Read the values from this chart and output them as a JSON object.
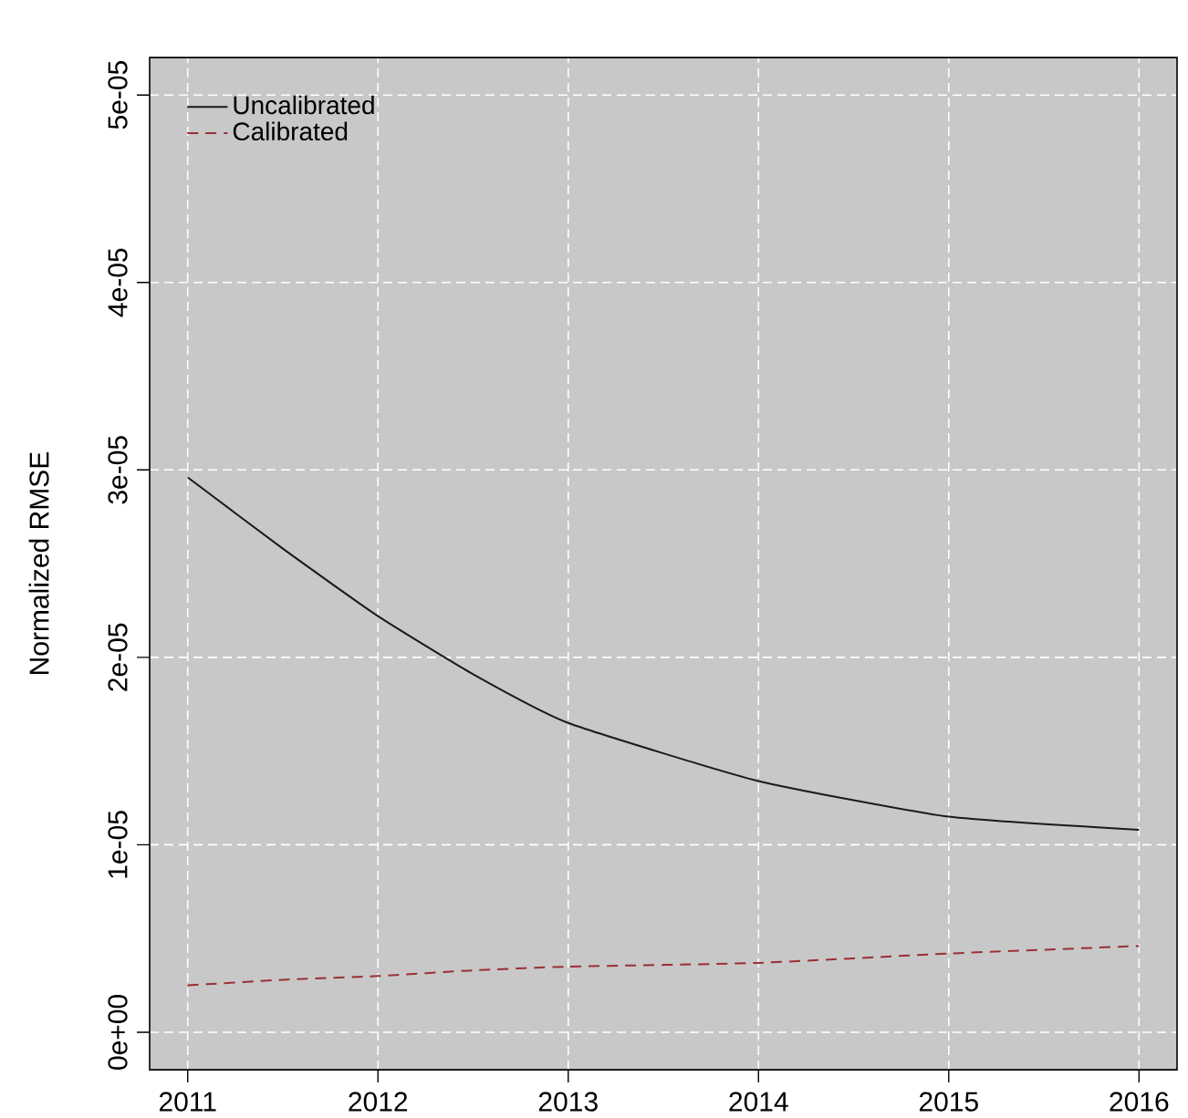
{
  "chart_data": {
    "type": "line",
    "ylabel": "Normalized RMSE",
    "x": [
      2011,
      2011.5,
      2012,
      2012.5,
      2013,
      2014,
      2015,
      2016
    ],
    "series": [
      {
        "name": "Uncalibrated",
        "color": "#1a1a1a",
        "line_style": "solid",
        "values": [
          2.96e-05,
          2.58e-05,
          2.22e-05,
          1.91e-05,
          1.65e-05,
          1.34e-05,
          1.15e-05,
          1.08e-05
        ]
      },
      {
        "name": "Calibrated",
        "color": "#9b2f35",
        "line_style": "dashed",
        "values": [
          2.5e-06,
          2.8e-06,
          3e-06,
          3.3e-06,
          3.5e-06,
          3.7e-06,
          4.2e-06,
          4.6e-06
        ]
      }
    ],
    "xlim": [
      2010.8,
      2016.2
    ],
    "xticks": [
      2011,
      2012,
      2013,
      2014,
      2015,
      2016
    ],
    "ylim": [
      -2e-06,
      5.2e-05
    ],
    "yticks": [
      {
        "value": 0,
        "label": "0e+00"
      },
      {
        "value": 1e-05,
        "label": "1e-05"
      },
      {
        "value": 2e-05,
        "label": "2e-05"
      },
      {
        "value": 3e-05,
        "label": "3e-05"
      },
      {
        "value": 4e-05,
        "label": "4e-05"
      },
      {
        "value": 5e-05,
        "label": "5e-05"
      }
    ],
    "grid": true,
    "legend": "top left",
    "marker": "none"
  }
}
